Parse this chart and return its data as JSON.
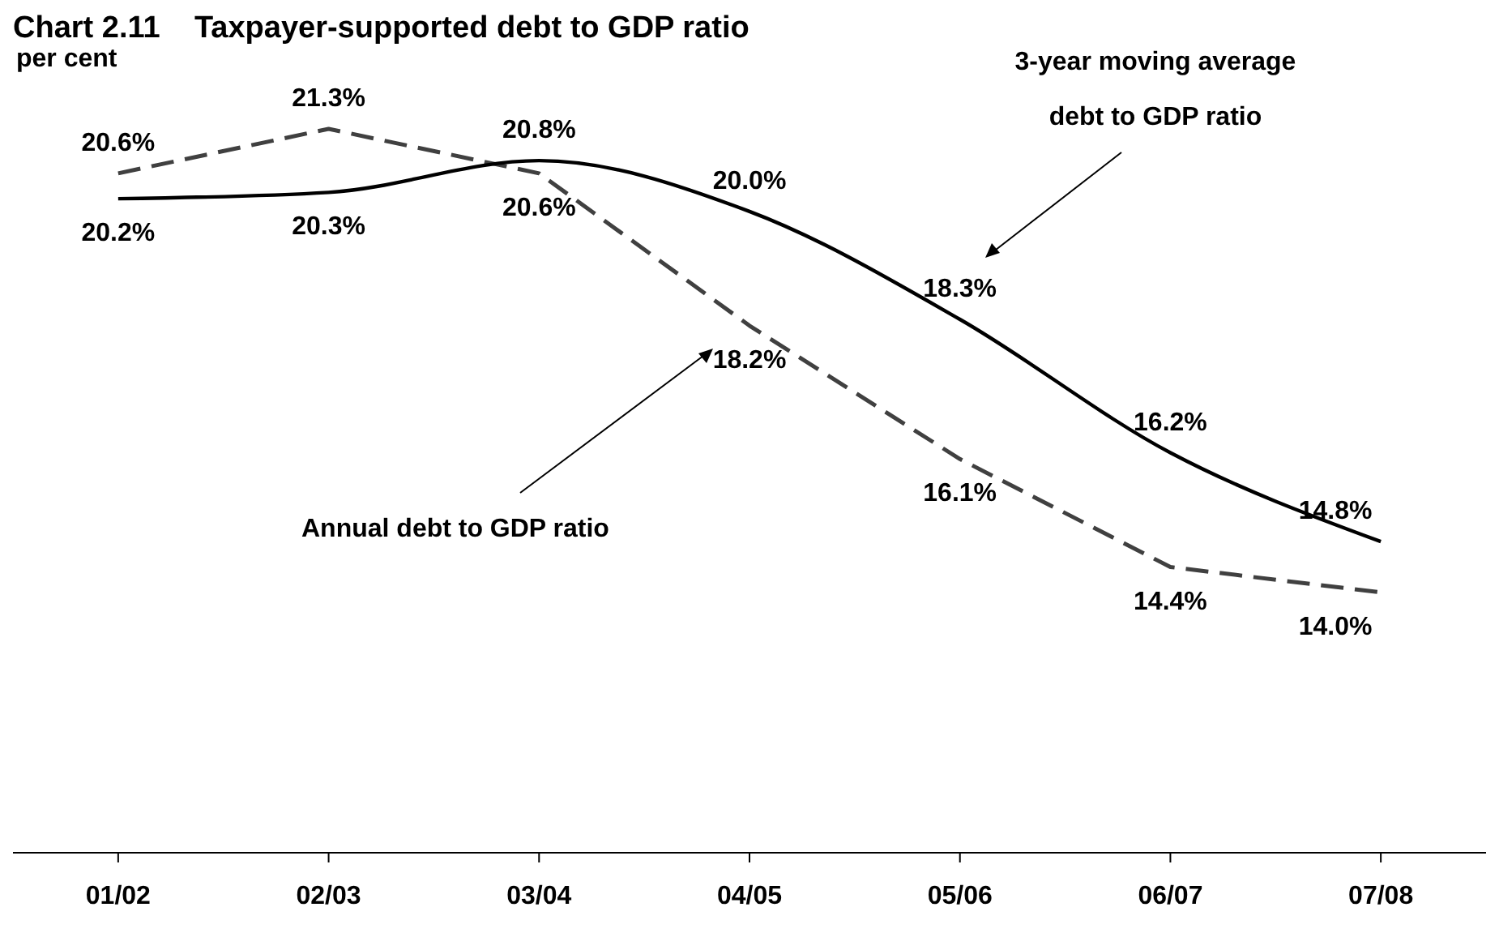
{
  "chart_data": {
    "type": "line",
    "title": "Chart 2.11    Taxpayer-supported debt to GDP ratio",
    "ylabel": "per cent",
    "categories": [
      "01/02",
      "02/03",
      "03/04",
      "04/05",
      "05/06",
      "06/07",
      "07/08"
    ],
    "tick_labels": "x",
    "marker": "none",
    "series": [
      {
        "color": "#404040",
        "line_style": "dashed",
        "values": [
          20.6,
          21.3,
          20.6,
          18.2,
          16.1,
          14.4,
          14.0
        ],
        "value_labels": [
          "20.6%",
          "21.3%",
          "20.6%",
          "18.2%",
          "16.1%",
          "14.4%",
          "14.0%"
        ]
      },
      {
        "color": "#000000",
        "line_style": "solid",
        "values": [
          20.2,
          20.3,
          20.8,
          20.0,
          18.3,
          16.2,
          14.8
        ],
        "value_labels": [
          "20.2%",
          "20.3%",
          "20.8%",
          "20.0%",
          "18.3%",
          "16.2%",
          "14.8%"
        ]
      }
    ],
    "annotations": [
      "3-year moving average debt to GDP ratio",
      "Annual debt to GDP ratio"
    ]
  }
}
